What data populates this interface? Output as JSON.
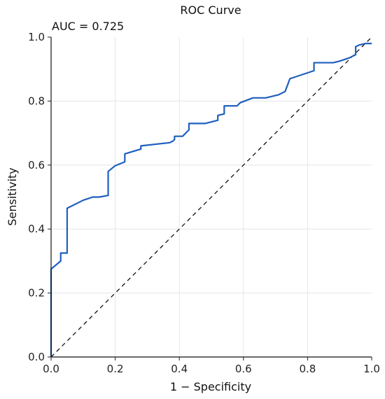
{
  "chart_data": {
    "type": "line",
    "title": "ROC Curve",
    "xlabel": "1 − Specificity",
    "ylabel": "Sensitivity",
    "xlim": [
      0,
      1
    ],
    "ylim": [
      0,
      1
    ],
    "xticks": [
      "0.0",
      "0.2",
      "0.4",
      "0.6",
      "0.8",
      "1.0"
    ],
    "yticks": [
      "0.0",
      "0.2",
      "0.4",
      "0.6",
      "0.8",
      "1.0"
    ],
    "grid": true,
    "annotation": "AUC = 0.725",
    "colors": {
      "roc": "#1f5fbf",
      "reference": "#111111",
      "grid": "#e6e6e6"
    },
    "series": [
      {
        "x": [
          0.0,
          0.0,
          0.03,
          0.03,
          0.05,
          0.05,
          0.1,
          0.13,
          0.15,
          0.178,
          0.178,
          0.2,
          0.23,
          0.23,
          0.28,
          0.28,
          0.37,
          0.38,
          0.385,
          0.385,
          0.41,
          0.43,
          0.43,
          0.47,
          0.48,
          0.52,
          0.52,
          0.54,
          0.54,
          0.58,
          0.59,
          0.63,
          0.67,
          0.69,
          0.71,
          0.73,
          0.745,
          0.76,
          0.82,
          0.82,
          0.85,
          0.87,
          0.88,
          0.9,
          0.93,
          0.95,
          0.95,
          0.96,
          0.98,
          1.0
        ],
        "y": [
          0.0,
          0.275,
          0.3,
          0.325,
          0.325,
          0.465,
          0.49,
          0.5,
          0.5,
          0.505,
          0.58,
          0.598,
          0.61,
          0.635,
          0.65,
          0.66,
          0.67,
          0.675,
          0.68,
          0.69,
          0.69,
          0.71,
          0.73,
          0.73,
          0.73,
          0.74,
          0.755,
          0.76,
          0.785,
          0.785,
          0.795,
          0.81,
          0.81,
          0.815,
          0.82,
          0.83,
          0.87,
          0.875,
          0.895,
          0.92,
          0.92,
          0.92,
          0.92,
          0.925,
          0.935,
          0.945,
          0.97,
          0.975,
          0.98,
          0.98
        ]
      }
    ]
  }
}
